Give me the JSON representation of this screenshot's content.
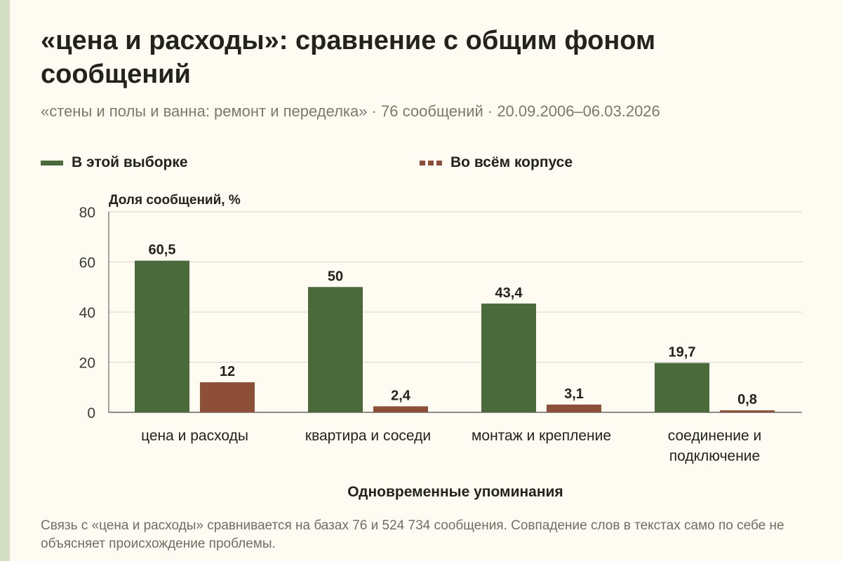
{
  "title": "«цена и расходы»: сравнение с общим фоном сообщений",
  "subtitle": "«стены и полы и ванна: ремонт и переделка» · 76 сообщений · 20.09.2006–06.03.2026",
  "footnote": "Связь с «цена и расходы» сравнивается на базах 76 и 524 734 сообщения. Совпадение слов в текстах само по себе не объясняет происхождение проблемы.",
  "colors": {
    "sample": "#4a6a3c",
    "corpus": "#8e4f39",
    "grid": "#d6d6cc",
    "background": "#fdfbf2"
  },
  "chart_data": {
    "type": "bar",
    "categories": [
      "цена и расходы",
      "квартира и соседи",
      "монтаж и крепление",
      "соединение и подключение"
    ],
    "series": [
      {
        "name": "В этой выборке",
        "values": [
          60.5,
          50,
          43.4,
          19.7
        ],
        "labels": [
          "60,5",
          "50",
          "43,4",
          "19,7"
        ]
      },
      {
        "name": "Во всём корпусе",
        "values": [
          12,
          2.4,
          3.1,
          0.8
        ],
        "labels": [
          "12",
          "2,4",
          "3,1",
          "0,8"
        ]
      }
    ],
    "ylabel": "Доля сообщений, %",
    "xlabel": "Одновременные упоминания",
    "ylim": [
      0,
      80
    ],
    "yticks": [
      0,
      20,
      40,
      60,
      80
    ],
    "grid": true,
    "legend_position": "top"
  }
}
